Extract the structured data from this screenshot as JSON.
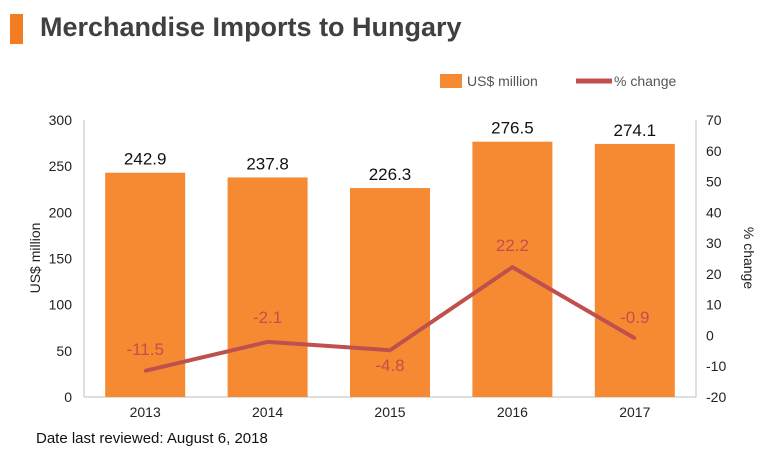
{
  "title": "Merchandise Imports to Hungary",
  "footer": "Date last reviewed: August 6, 2018",
  "colors": {
    "accent": "#f47c20",
    "bar": "#f58a33",
    "line": "#c0504d",
    "title": "#404040"
  },
  "chart_data": {
    "type": "bar",
    "title": "Merchandise Imports to Hungary",
    "categories": [
      "2013",
      "2014",
      "2015",
      "2016",
      "2017"
    ],
    "series": [
      {
        "name": "US$ million",
        "type": "bar",
        "axis": "left",
        "values": [
          242.9,
          237.8,
          226.3,
          276.5,
          274.1
        ],
        "labels": [
          "242.9",
          "237.8",
          "226.3",
          "276.5",
          "274.1"
        ]
      },
      {
        "name": "% change",
        "type": "line",
        "axis": "right",
        "values": [
          -11.5,
          -2.1,
          -4.8,
          22.2,
          -0.9
        ],
        "labels": [
          "-11.5",
          "-2.1",
          "-4.8",
          "22.2",
          "-0.9"
        ]
      }
    ],
    "ylabel": "US$ million",
    "ylabel_right": "% change",
    "ylim": [
      0,
      300
    ],
    "ylim_right": [
      -20,
      70
    ],
    "yticks": [
      "0",
      "50",
      "100",
      "150",
      "200",
      "250",
      "300"
    ],
    "yticks_right": [
      "-20",
      "-10",
      "0",
      "10",
      "20",
      "30",
      "40",
      "50",
      "60",
      "70"
    ],
    "grid": false,
    "legend": "top-right"
  }
}
